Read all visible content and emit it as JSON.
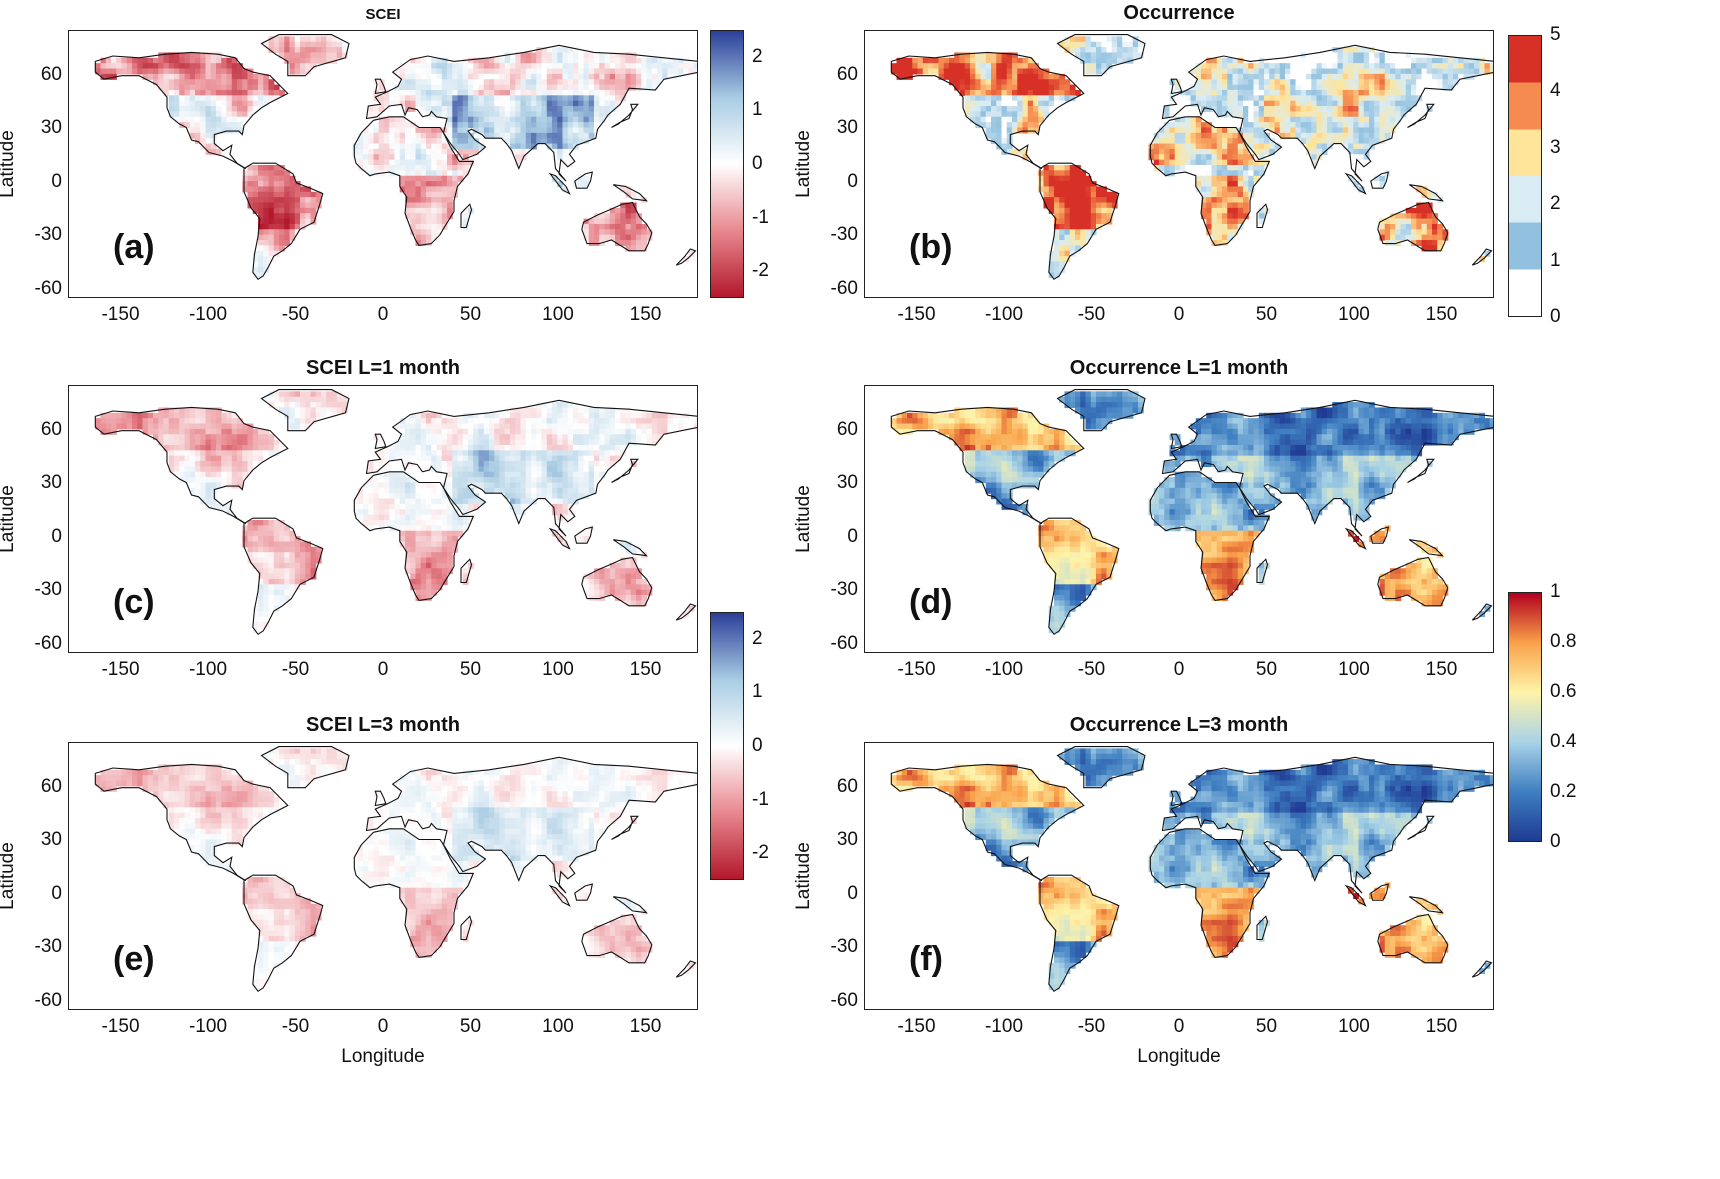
{
  "axes": {
    "ylabel": "Latitude",
    "xlabel": "Longitude",
    "xticks": [
      "-150",
      "-100",
      "-50",
      "0",
      "50",
      "100",
      "150"
    ],
    "yticks": [
      "60",
      "30",
      "0",
      "-30",
      "-60"
    ]
  },
  "panels": [
    {
      "id": "a",
      "title": "SCEI",
      "label": "(a)",
      "scheme": "scei"
    },
    {
      "id": "b",
      "title": "Occurrence",
      "label": "(b)",
      "scheme": "occ"
    },
    {
      "id": "c",
      "title": "SCEI L=1 month",
      "label": "(c)",
      "scheme": "scei_l1"
    },
    {
      "id": "d",
      "title": "Occurrence L=1 month",
      "label": "(d)",
      "scheme": "prob"
    },
    {
      "id": "e",
      "title": "SCEI L=3 month",
      "label": "(e)",
      "scheme": "scei_l3"
    },
    {
      "id": "f",
      "title": "Occurrence L=3 month",
      "label": "(f)",
      "scheme": "prob"
    }
  ],
  "colorbars": {
    "scei": {
      "ticks": [
        "2",
        "1",
        "0",
        "-1",
        "-2"
      ],
      "range": [
        -2.5,
        2.5
      ],
      "colors": [
        "#b2182b",
        "#e8888f",
        "#ffffff",
        "#a9cce3",
        "#2b3f99"
      ]
    },
    "occurrence": {
      "ticks": [
        "5",
        "4",
        "3",
        "2",
        "1",
        "0"
      ],
      "range": [
        0,
        5
      ],
      "colors": [
        "#ffffff",
        "#92c1df",
        "#d9ecf4",
        "#fee59a",
        "#f58b4f",
        "#d73027"
      ]
    },
    "probability": {
      "ticks": [
        "1",
        "0.8",
        "0.6",
        "0.4",
        "0.2",
        "0"
      ],
      "range": [
        0,
        1
      ],
      "colors": [
        "#1f3a93",
        "#3f7fc1",
        "#a9d3e7",
        "#fff3a8",
        "#f9a14a",
        "#b2001e"
      ]
    }
  }
}
